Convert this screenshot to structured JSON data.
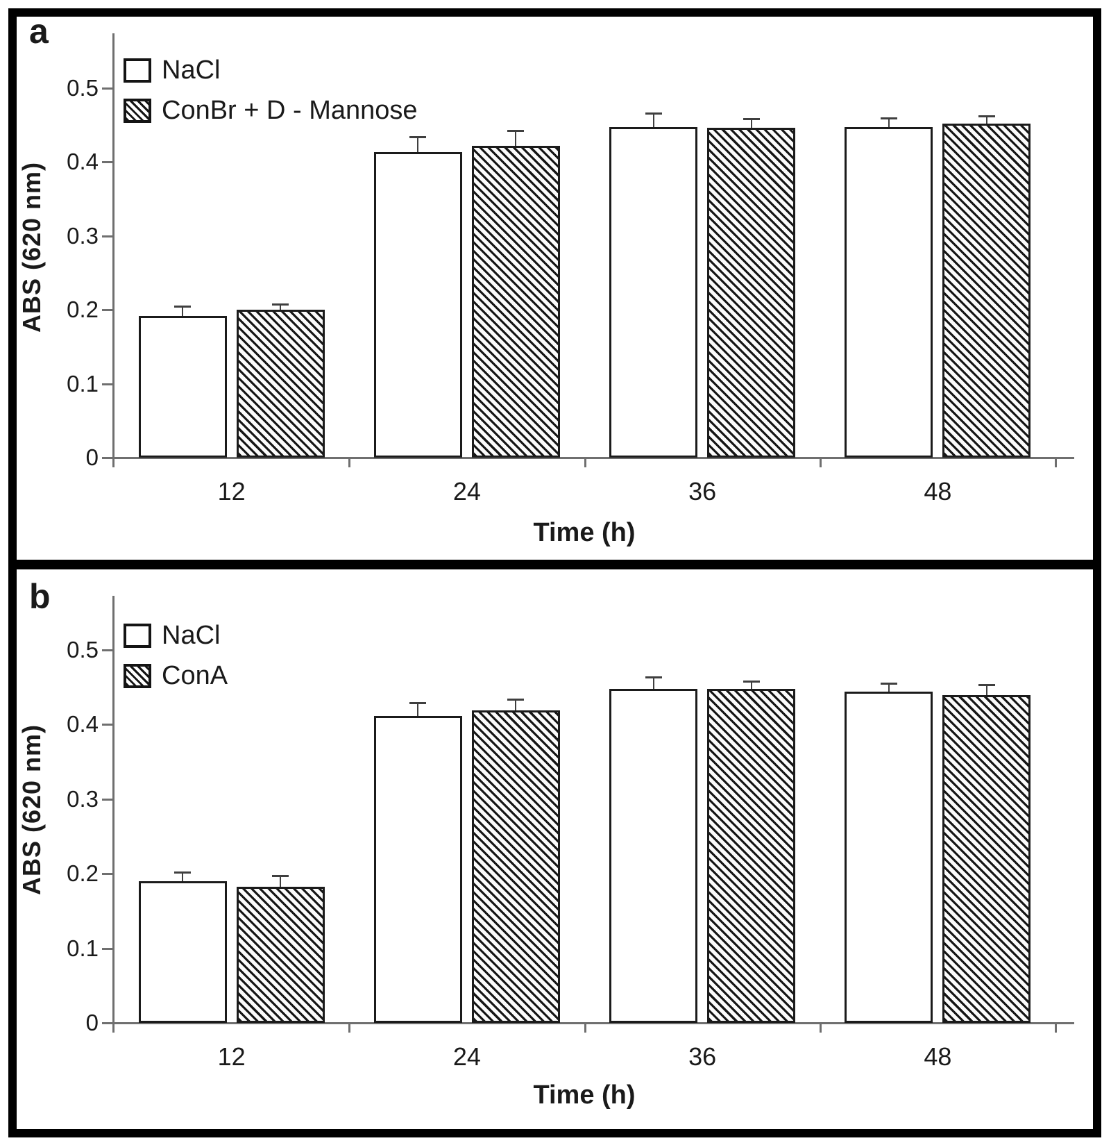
{
  "figure_border_color": "#000000",
  "axis_color": "#6f6f6f",
  "bar_outline_color": "#1b1b1b",
  "text_color": "#1a1a1a",
  "chart_data": [
    {
      "type": "bar",
      "panel_label": "a",
      "categories": [
        "12",
        "24",
        "36",
        "48"
      ],
      "series": [
        {
          "name": "NaCl",
          "fill": "white",
          "values": [
            0.192,
            0.413,
            0.447,
            0.447
          ],
          "errors": [
            0.012,
            0.02,
            0.018,
            0.011
          ]
        },
        {
          "name": "ConBr + D - Mannose",
          "fill": "hatch",
          "values": [
            0.2,
            0.422,
            0.446,
            0.452
          ],
          "errors": [
            0.007,
            0.019,
            0.011,
            0.009
          ]
        }
      ],
      "xlabel": "Time (h)",
      "ylabel": "ABS (620 nm)",
      "yticks": [
        "0",
        "0.1",
        "0.2",
        "0.3",
        "0.4",
        "0.5"
      ],
      "ytick_values": [
        0,
        0.1,
        0.2,
        0.3,
        0.4,
        0.5
      ],
      "ylim": [
        0,
        0.57
      ],
      "grid": false,
      "legend_position": "top-left",
      "error_bars": "upper"
    },
    {
      "type": "bar",
      "panel_label": "b",
      "categories": [
        "12",
        "24",
        "36",
        "48"
      ],
      "series": [
        {
          "name": "NaCl",
          "fill": "white",
          "values": [
            0.19,
            0.411,
            0.447,
            0.444
          ],
          "errors": [
            0.011,
            0.017,
            0.015,
            0.01
          ]
        },
        {
          "name": "ConA",
          "fill": "hatch",
          "values": [
            0.182,
            0.419,
            0.447,
            0.439
          ],
          "errors": [
            0.014,
            0.014,
            0.01,
            0.013
          ]
        }
      ],
      "xlabel": "Time (h)",
      "ylabel": "ABS (620 nm)",
      "yticks": [
        "0",
        "0.1",
        "0.2",
        "0.3",
        "0.4",
        "0.5"
      ],
      "ytick_values": [
        0,
        0.1,
        0.2,
        0.3,
        0.4,
        0.5
      ],
      "ylim": [
        0,
        0.57
      ],
      "grid": false,
      "legend_position": "top-left",
      "error_bars": "upper"
    }
  ]
}
